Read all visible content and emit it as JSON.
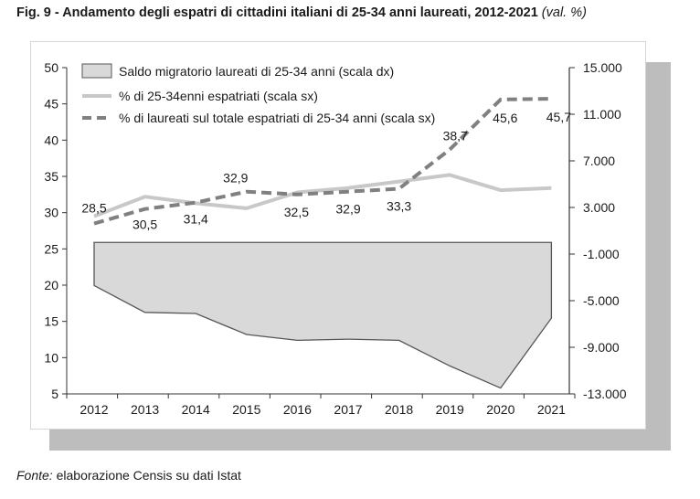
{
  "title": "Fig. 9 - Andamento degli espatri di cittadini italiani di 25-34 anni laureati, 2012-2021",
  "title_unit": "(val. %)",
  "source_label": "Fonte:",
  "source_text": "elaborazione Censis su dati Istat",
  "chart_data": {
    "type": "line",
    "categories": [
      "2012",
      "2013",
      "2014",
      "2015",
      "2016",
      "2017",
      "2018",
      "2019",
      "2020",
      "2021"
    ],
    "left_axis": {
      "ylim": [
        5,
        50
      ],
      "ticks": [
        "50",
        "45",
        "40",
        "35",
        "30",
        "25",
        "20",
        "15",
        "10",
        "5"
      ]
    },
    "right_axis": {
      "ylim": [
        -13000,
        15000
      ],
      "ticks": [
        "15.000",
        "11.000",
        "7.000",
        "3.000",
        "-1.000",
        "-5.000",
        "-9.000",
        "-13.000"
      ]
    },
    "series": [
      {
        "name": "Saldo migratorio laureati di 25-34 anni (scala dx)",
        "kind": "area",
        "axis": "right",
        "values": [
          -3700,
          -6000,
          -6100,
          -7900,
          -8400,
          -8300,
          -8400,
          -10600,
          -12500,
          -6500
        ],
        "color": "#d9d9d9",
        "stroke": "#555555"
      },
      {
        "name": "% di 25-34enni espatriati (scala sx)",
        "kind": "line",
        "axis": "left",
        "values": [
          29.5,
          32.2,
          31.3,
          30.6,
          32.8,
          33.4,
          34.3,
          35.2,
          33.1,
          33.4
        ],
        "color": "#c8c8c8"
      },
      {
        "name": "% di laureati sul totale espatriati di 25-34 anni (scala sx)",
        "kind": "dashed",
        "axis": "left",
        "values": [
          28.5,
          30.5,
          31.4,
          32.9,
          32.5,
          32.9,
          33.3,
          38.7,
          45.6,
          45.7
        ],
        "labels": [
          "28,5",
          "30,5",
          "31,4",
          "32,9",
          "32,5",
          "32,9",
          "33,3",
          "38,7",
          "45,6",
          "45,7"
        ],
        "color": "#808080"
      }
    ]
  }
}
